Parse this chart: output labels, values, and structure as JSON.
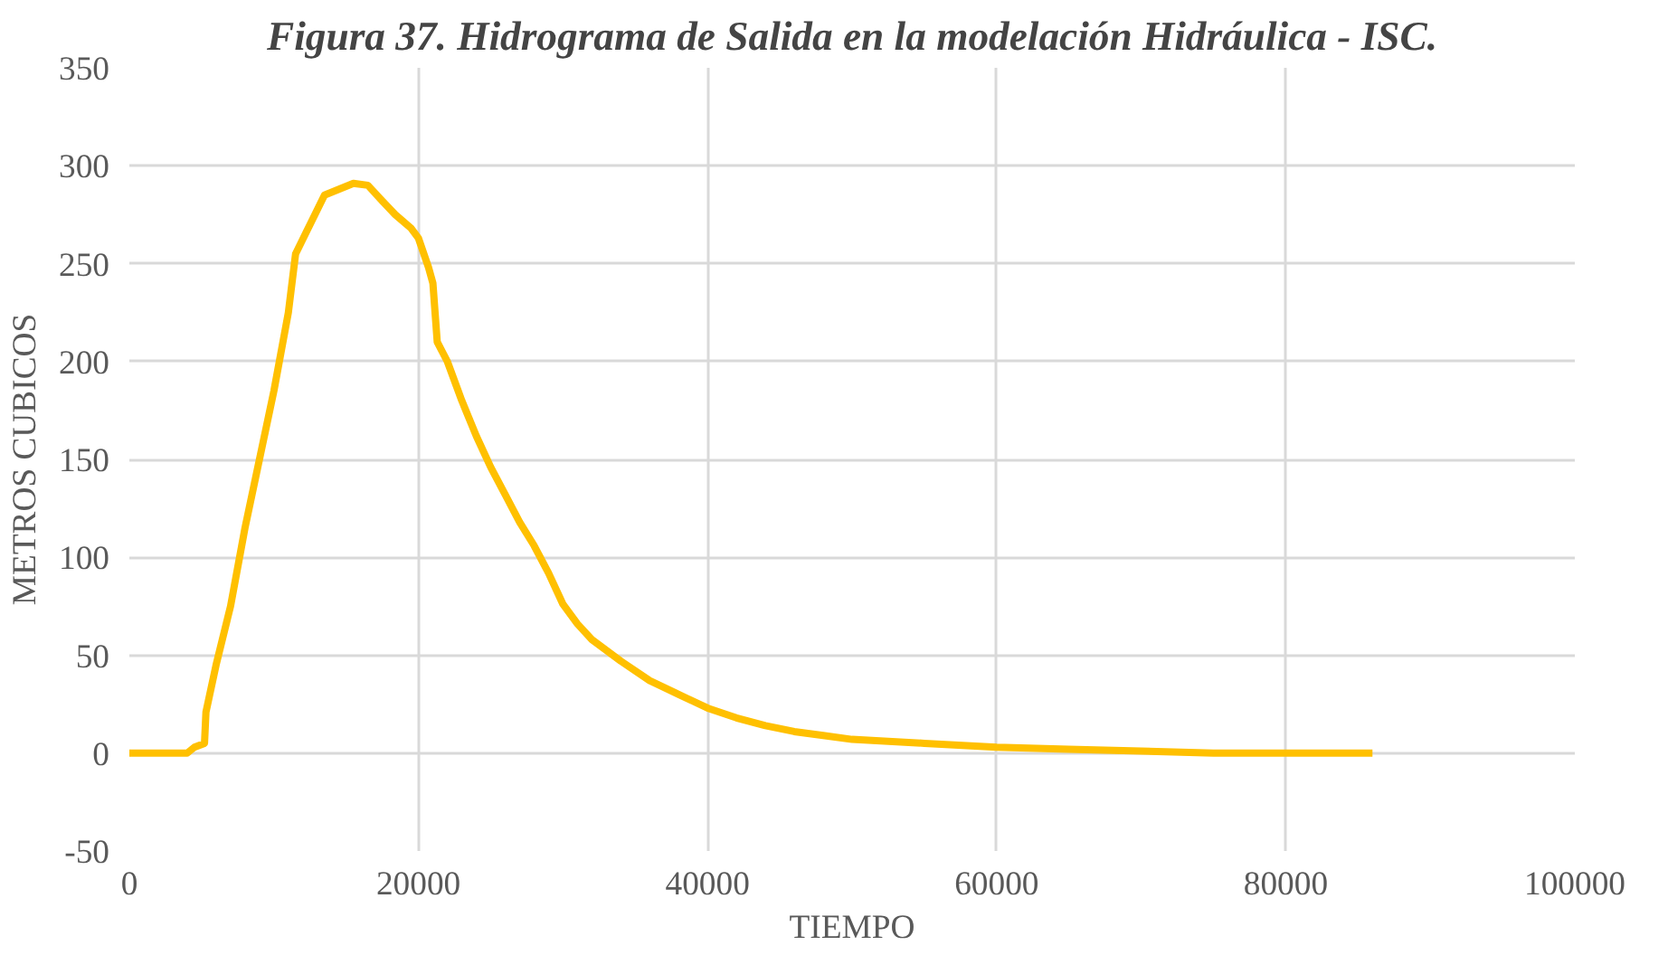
{
  "chart_data": {
    "type": "line",
    "title": "Figura 37. Hidrograma de Salida en la modelación Hidráulica - ISC.",
    "xlabel": "TIEMPO",
    "ylabel": "METROS CUBICOS",
    "xlim": [
      0,
      100000
    ],
    "xticks": [
      0,
      20000,
      40000,
      60000,
      80000,
      100000
    ],
    "ylim": [
      -50,
      350
    ],
    "yticks": [
      -50,
      0,
      50,
      100,
      150,
      200,
      250,
      300,
      350
    ],
    "grid": true,
    "marker": "none",
    "line_style": "solid",
    "series": [
      {
        "color": "#ffc000",
        "x": [
          0,
          4000,
          4500,
          5200,
          5300,
          6000,
          7000,
          8000,
          9000,
          10000,
          11000,
          11500,
          12500,
          13500,
          14500,
          15500,
          16500,
          17500,
          18400,
          19500,
          20000,
          20700,
          21000,
          21300,
          22000,
          23000,
          24000,
          25000,
          26000,
          27000,
          28000,
          29000,
          30000,
          31000,
          32000,
          34000,
          36000,
          38000,
          40000,
          42000,
          44000,
          46000,
          48000,
          50000,
          55000,
          60000,
          65000,
          70000,
          75000,
          80000,
          86000
        ],
        "values": [
          0,
          0,
          3,
          5,
          21,
          45,
          75,
          115,
          150,
          185,
          225,
          255,
          270,
          285,
          288,
          291,
          290,
          282,
          275,
          268,
          263,
          248,
          240,
          210,
          200,
          180,
          162,
          146,
          132,
          118,
          106,
          92,
          76,
          66,
          58,
          47,
          37,
          30,
          23,
          18,
          14,
          11,
          9,
          7,
          5,
          3,
          2,
          1,
          0,
          0,
          0
        ]
      }
    ]
  }
}
